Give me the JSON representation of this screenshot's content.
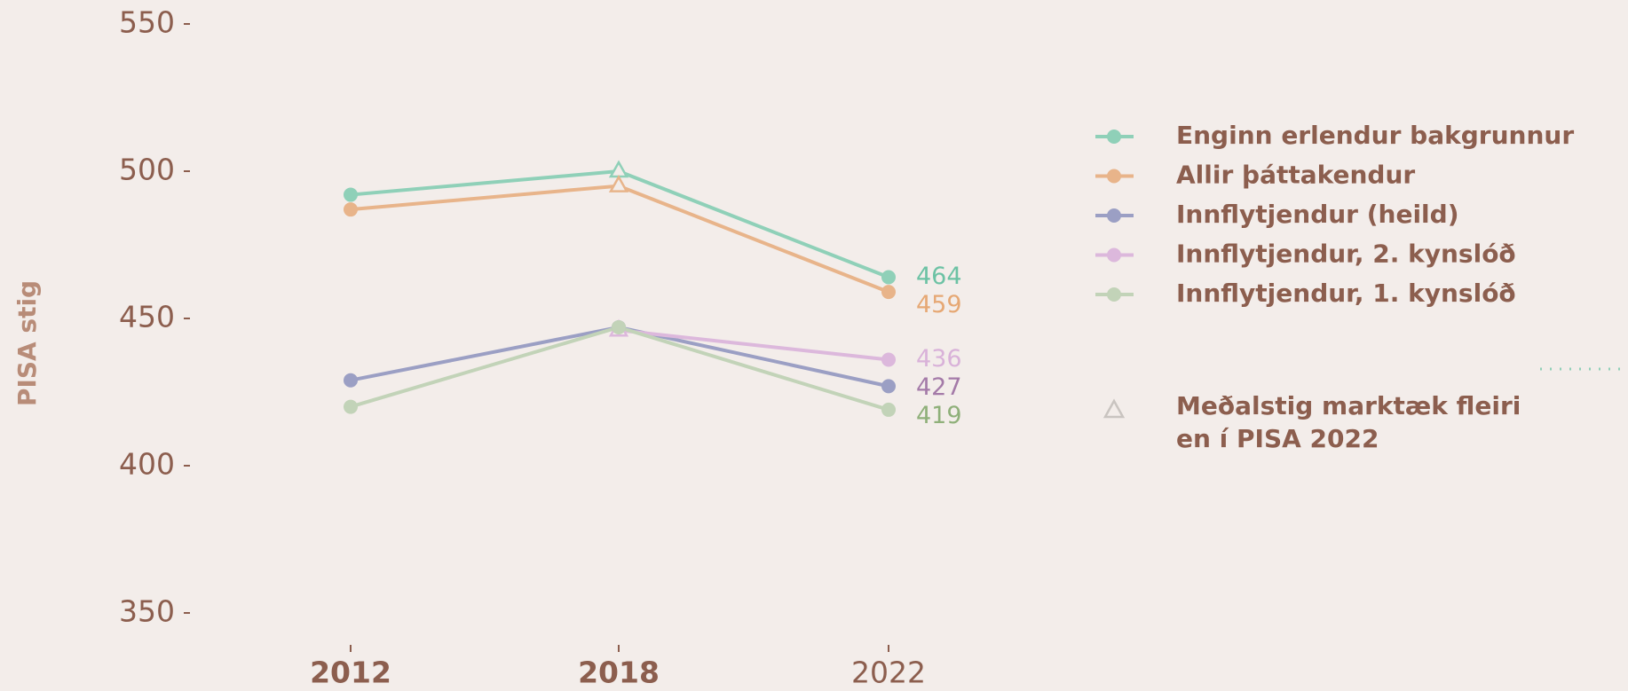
{
  "chart_data": {
    "type": "line",
    "y_label": "PISA stig",
    "categories": [
      "2012",
      "2018",
      "2022"
    ],
    "bold_categories": [
      true,
      true,
      false
    ],
    "ylim": [
      350,
      550
    ],
    "yticks": [
      350,
      400,
      450,
      500,
      550
    ],
    "series": [
      {
        "name": "Enginn erlendur bakgrunnur",
        "color": "#8fd0b8",
        "label_color": "#6cc2a4",
        "values": [
          492,
          500,
          464
        ],
        "markers": [
          "circle",
          "triangle",
          "circle"
        ],
        "value_labels": [
          null,
          null,
          "464"
        ]
      },
      {
        "name": "Allir þáttakendur",
        "color": "#e8b48a",
        "label_color": "#e6a874",
        "values": [
          487,
          495,
          459
        ],
        "markers": [
          "circle",
          "triangle",
          "circle"
        ],
        "value_labels": [
          null,
          null,
          "459"
        ]
      },
      {
        "name": "Innflytjendur (heild)",
        "color": "#9b9fc4",
        "label_color": "#a47aa8",
        "values": [
          429,
          447,
          427
        ],
        "markers": [
          "circle",
          "circle",
          "circle"
        ],
        "value_labels": [
          null,
          null,
          "427"
        ]
      },
      {
        "name": "Innflytjendur, 2. kynslóð",
        "color": "#dcb8dc",
        "label_color": "#d9b2d9",
        "values": [
          null,
          446,
          436
        ],
        "markers": [
          "circle",
          "triangle",
          "circle"
        ],
        "value_labels": [
          null,
          null,
          "436"
        ]
      },
      {
        "name": "Innflytjendur, 1. kynslóð",
        "color": "#c2d3b8",
        "label_color": "#8fb07a",
        "values": [
          420,
          447,
          419
        ],
        "markers": [
          "circle",
          "circle",
          "circle"
        ],
        "value_labels": [
          null,
          null,
          "419"
        ]
      }
    ],
    "marker_note": [
      "Meðalstig marktæk fleiri",
      "en í PISA 2022"
    ]
  }
}
